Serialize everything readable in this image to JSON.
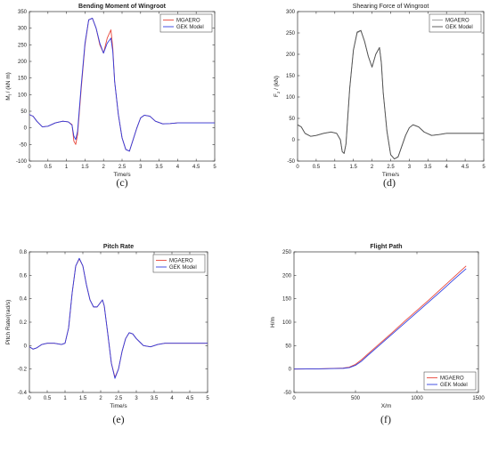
{
  "figure": {
    "colors": {
      "series_a": "#e8463a",
      "series_b": "#2f3de0",
      "series_b_light": "#4f4f4f",
      "axis": "#333333"
    }
  },
  "chart_data": [
    {
      "id": "c",
      "sublabel": "(c)",
      "type": "line",
      "title": "Bending Moment of Wingroot",
      "title_bold": true,
      "xlabel": "Time/s",
      "ylabel": "M_f / (kN·m)",
      "ylabel_main": "M",
      "ylabel_sub": "f",
      "ylabel_rest": " / (kN m)",
      "xlim": [
        0,
        5
      ],
      "ylim": [
        -100,
        350
      ],
      "xticks": [
        0,
        0.5,
        1,
        1.5,
        2,
        2.5,
        3,
        3.5,
        4,
        4.5,
        5
      ],
      "xtick_labels": [
        "0",
        "0.5",
        "1",
        "1.5",
        "2",
        "2.5",
        "3",
        "3.5",
        "4",
        "4.5",
        "5"
      ],
      "yticks": [
        -100,
        -50,
        0,
        50,
        100,
        150,
        200,
        250,
        300,
        350
      ],
      "ytick_labels": [
        "-100",
        "-50",
        "0",
        "50",
        "100",
        "150",
        "200",
        "250",
        "300",
        "350"
      ],
      "legend": [
        "MGAERO",
        "GEK Model"
      ],
      "legend_position": "top-right",
      "series": [
        {
          "name": "MGAERO",
          "color": "#e8463a",
          "x": [
            0,
            0.1,
            0.2,
            0.35,
            0.5,
            0.7,
            0.9,
            1.05,
            1.15,
            1.2,
            1.25,
            1.3,
            1.4,
            1.5,
            1.6,
            1.7,
            1.8,
            1.9,
            2.0,
            2.1,
            2.2,
            2.25,
            2.3,
            2.4,
            2.5,
            2.6,
            2.7,
            2.8,
            2.9,
            3.0,
            3.1,
            3.25,
            3.4,
            3.6,
            3.8,
            4.0,
            4.5,
            5.0
          ],
          "y": [
            40,
            35,
            20,
            3,
            5,
            15,
            20,
            18,
            10,
            -40,
            -50,
            -20,
            120,
            250,
            325,
            330,
            300,
            250,
            225,
            270,
            295,
            240,
            140,
            40,
            -30,
            -65,
            -70,
            -35,
            0,
            30,
            38,
            35,
            20,
            12,
            13,
            15,
            15,
            15
          ]
        },
        {
          "name": "GEK Model",
          "color": "#2f3de0",
          "x": [
            0,
            0.1,
            0.2,
            0.35,
            0.5,
            0.7,
            0.9,
            1.05,
            1.15,
            1.2,
            1.25,
            1.3,
            1.4,
            1.5,
            1.6,
            1.7,
            1.8,
            1.9,
            2.0,
            2.1,
            2.2,
            2.25,
            2.3,
            2.4,
            2.5,
            2.6,
            2.7,
            2.8,
            2.9,
            3.0,
            3.1,
            3.25,
            3.4,
            3.6,
            3.8,
            4.0,
            4.5,
            5.0
          ],
          "y": [
            40,
            35,
            20,
            3,
            5,
            15,
            20,
            18,
            8,
            -25,
            -35,
            -10,
            130,
            255,
            325,
            330,
            300,
            255,
            225,
            255,
            270,
            230,
            140,
            40,
            -30,
            -65,
            -70,
            -35,
            0,
            30,
            38,
            35,
            20,
            12,
            13,
            15,
            15,
            15
          ]
        }
      ]
    },
    {
      "id": "d",
      "sublabel": "(d)",
      "type": "line",
      "title": "Shearing Force of Wingroot",
      "title_bold": false,
      "xlabel": "Time/s",
      "ylabel": "F_z / (kN)",
      "ylabel_main": "F",
      "ylabel_sub": "z",
      "ylabel_rest": " / (kN)",
      "xlim": [
        0,
        5
      ],
      "ylim": [
        -50,
        300
      ],
      "xticks": [
        0,
        0.5,
        1,
        1.5,
        2,
        2.5,
        3,
        3.5,
        4,
        4.5,
        5
      ],
      "xtick_labels": [
        "0",
        "0.5",
        "1",
        "1.5",
        "2",
        "2.5",
        "3",
        "3.5",
        "4",
        "4.5",
        "5"
      ],
      "yticks": [
        -50,
        0,
        50,
        100,
        150,
        200,
        250,
        300
      ],
      "ytick_labels": [
        "-50",
        "0",
        "50",
        "100",
        "150",
        "200",
        "250",
        "300"
      ],
      "legend": [
        "MGAERO",
        "GEK Model"
      ],
      "legend_position": "top-right",
      "series": [
        {
          "name": "MGAERO",
          "color": "#999999",
          "x": [
            0,
            0.1,
            0.2,
            0.35,
            0.5,
            0.7,
            0.9,
            1.05,
            1.15,
            1.2,
            1.25,
            1.3,
            1.4,
            1.5,
            1.6,
            1.7,
            1.8,
            1.9,
            2.0,
            2.1,
            2.2,
            2.25,
            2.3,
            2.4,
            2.5,
            2.6,
            2.7,
            2.8,
            2.9,
            3.0,
            3.1,
            3.25,
            3.4,
            3.6,
            3.8,
            4.0,
            4.5,
            5.0
          ],
          "y": [
            35,
            30,
            15,
            8,
            10,
            15,
            18,
            15,
            0,
            -28,
            -32,
            -10,
            120,
            210,
            250,
            255,
            230,
            195,
            170,
            200,
            215,
            180,
            110,
            20,
            -35,
            -45,
            -40,
            -15,
            10,
            28,
            35,
            30,
            18,
            10,
            12,
            15,
            15,
            15
          ]
        },
        {
          "name": "GEK Model",
          "color": "#4f4f4f",
          "x": [
            0,
            0.1,
            0.2,
            0.35,
            0.5,
            0.7,
            0.9,
            1.05,
            1.15,
            1.2,
            1.25,
            1.3,
            1.4,
            1.5,
            1.6,
            1.7,
            1.8,
            1.9,
            2.0,
            2.1,
            2.2,
            2.25,
            2.3,
            2.4,
            2.5,
            2.6,
            2.7,
            2.8,
            2.9,
            3.0,
            3.1,
            3.25,
            3.4,
            3.6,
            3.8,
            4.0,
            4.5,
            5.0
          ],
          "y": [
            35,
            30,
            15,
            8,
            10,
            15,
            18,
            15,
            0,
            -28,
            -32,
            -10,
            120,
            210,
            252,
            256,
            230,
            195,
            170,
            200,
            216,
            180,
            110,
            20,
            -35,
            -45,
            -40,
            -15,
            10,
            28,
            35,
            30,
            18,
            10,
            12,
            15,
            15,
            15
          ]
        }
      ]
    },
    {
      "id": "e",
      "sublabel": "(e)",
      "type": "line",
      "title": "Pitch Rate",
      "title_bold": true,
      "xlabel": "Time/s",
      "ylabel": "Pitch Rate/(rad/s)",
      "xlim": [
        0,
        5
      ],
      "ylim": [
        -0.4,
        0.8
      ],
      "xticks": [
        0,
        0.5,
        1,
        1.5,
        2,
        2.5,
        3,
        3.5,
        4,
        4.5,
        5
      ],
      "xtick_labels": [
        "0",
        "0.5",
        "1",
        "1.5",
        "2",
        "2.5",
        "3",
        "3.5",
        "4",
        "4.5",
        "5"
      ],
      "yticks": [
        -0.4,
        -0.2,
        0,
        0.2,
        0.4,
        0.6,
        0.8
      ],
      "ytick_labels": [
        "-0.4",
        "-0.2",
        "0",
        "0.2",
        "0.4",
        "0.6",
        "0.8"
      ],
      "legend": [
        "MGAERO",
        "GEK Model"
      ],
      "legend_position": "top-right",
      "series": [
        {
          "name": "MGAERO",
          "color": "#e8463a",
          "x": [
            0,
            0.1,
            0.2,
            0.35,
            0.5,
            0.7,
            0.9,
            1.0,
            1.1,
            1.2,
            1.3,
            1.4,
            1.5,
            1.6,
            1.7,
            1.8,
            1.9,
            2.0,
            2.05,
            2.1,
            2.2,
            2.3,
            2.4,
            2.5,
            2.6,
            2.7,
            2.8,
            2.9,
            3.0,
            3.1,
            3.2,
            3.4,
            3.6,
            3.8,
            4.0,
            4.5,
            5.0
          ],
          "y": [
            -0.01,
            -0.03,
            -0.02,
            0.01,
            0.02,
            0.02,
            0.01,
            0.02,
            0.15,
            0.45,
            0.68,
            0.74,
            0.68,
            0.52,
            0.39,
            0.33,
            0.33,
            0.37,
            0.39,
            0.34,
            0.1,
            -0.15,
            -0.27,
            -0.2,
            -0.05,
            0.06,
            0.11,
            0.1,
            0.06,
            0.03,
            0.0,
            -0.01,
            0.01,
            0.02,
            0.02,
            0.02,
            0.02
          ]
        },
        {
          "name": "GEK Model",
          "color": "#2f3de0",
          "x": [
            0,
            0.1,
            0.2,
            0.35,
            0.5,
            0.7,
            0.9,
            1.0,
            1.1,
            1.2,
            1.3,
            1.4,
            1.5,
            1.6,
            1.7,
            1.8,
            1.9,
            2.0,
            2.05,
            2.1,
            2.2,
            2.3,
            2.4,
            2.5,
            2.6,
            2.7,
            2.8,
            2.9,
            3.0,
            3.1,
            3.2,
            3.4,
            3.6,
            3.8,
            4.0,
            4.5,
            5.0
          ],
          "y": [
            -0.01,
            -0.03,
            -0.02,
            0.01,
            0.02,
            0.02,
            0.01,
            0.02,
            0.15,
            0.45,
            0.68,
            0.745,
            0.68,
            0.52,
            0.39,
            0.33,
            0.33,
            0.37,
            0.39,
            0.34,
            0.1,
            -0.15,
            -0.28,
            -0.2,
            -0.05,
            0.06,
            0.11,
            0.1,
            0.06,
            0.03,
            0.0,
            -0.01,
            0.01,
            0.02,
            0.02,
            0.02,
            0.02
          ]
        }
      ]
    },
    {
      "id": "f",
      "sublabel": "(f)",
      "type": "line",
      "title": "Flight Path",
      "title_bold": true,
      "xlabel": "X/m",
      "ylabel": "H/m",
      "xlim": [
        0,
        1500
      ],
      "ylim": [
        -50,
        250
      ],
      "xticks": [
        0,
        500,
        1000,
        1500
      ],
      "xtick_labels": [
        "0",
        "500",
        "1000",
        "1500"
      ],
      "yticks": [
        -50,
        0,
        50,
        100,
        150,
        200,
        250
      ],
      "ytick_labels": [
        "-50",
        "0",
        "50",
        "100",
        "150",
        "200",
        "250"
      ],
      "legend": [
        "MGAERO",
        "GEK Model"
      ],
      "legend_position": "bottom-right",
      "series": [
        {
          "name": "MGAERO",
          "color": "#e8463a",
          "x": [
            0,
            200,
            400,
            450,
            500,
            550,
            600,
            700,
            800,
            900,
            1000,
            1100,
            1200,
            1300,
            1400
          ],
          "y": [
            0,
            0.5,
            2,
            4,
            10,
            20,
            32,
            55,
            78,
            102,
            125,
            148,
            172,
            196,
            220
          ]
        },
        {
          "name": "GEK Model",
          "color": "#2f3de0",
          "x": [
            0,
            200,
            400,
            450,
            500,
            550,
            600,
            700,
            800,
            900,
            1000,
            1100,
            1200,
            1300,
            1400
          ],
          "y": [
            0,
            0.5,
            1.5,
            3,
            8,
            17,
            29,
            52,
            75,
            98,
            121,
            144,
            167,
            191,
            214
          ]
        }
      ]
    }
  ]
}
